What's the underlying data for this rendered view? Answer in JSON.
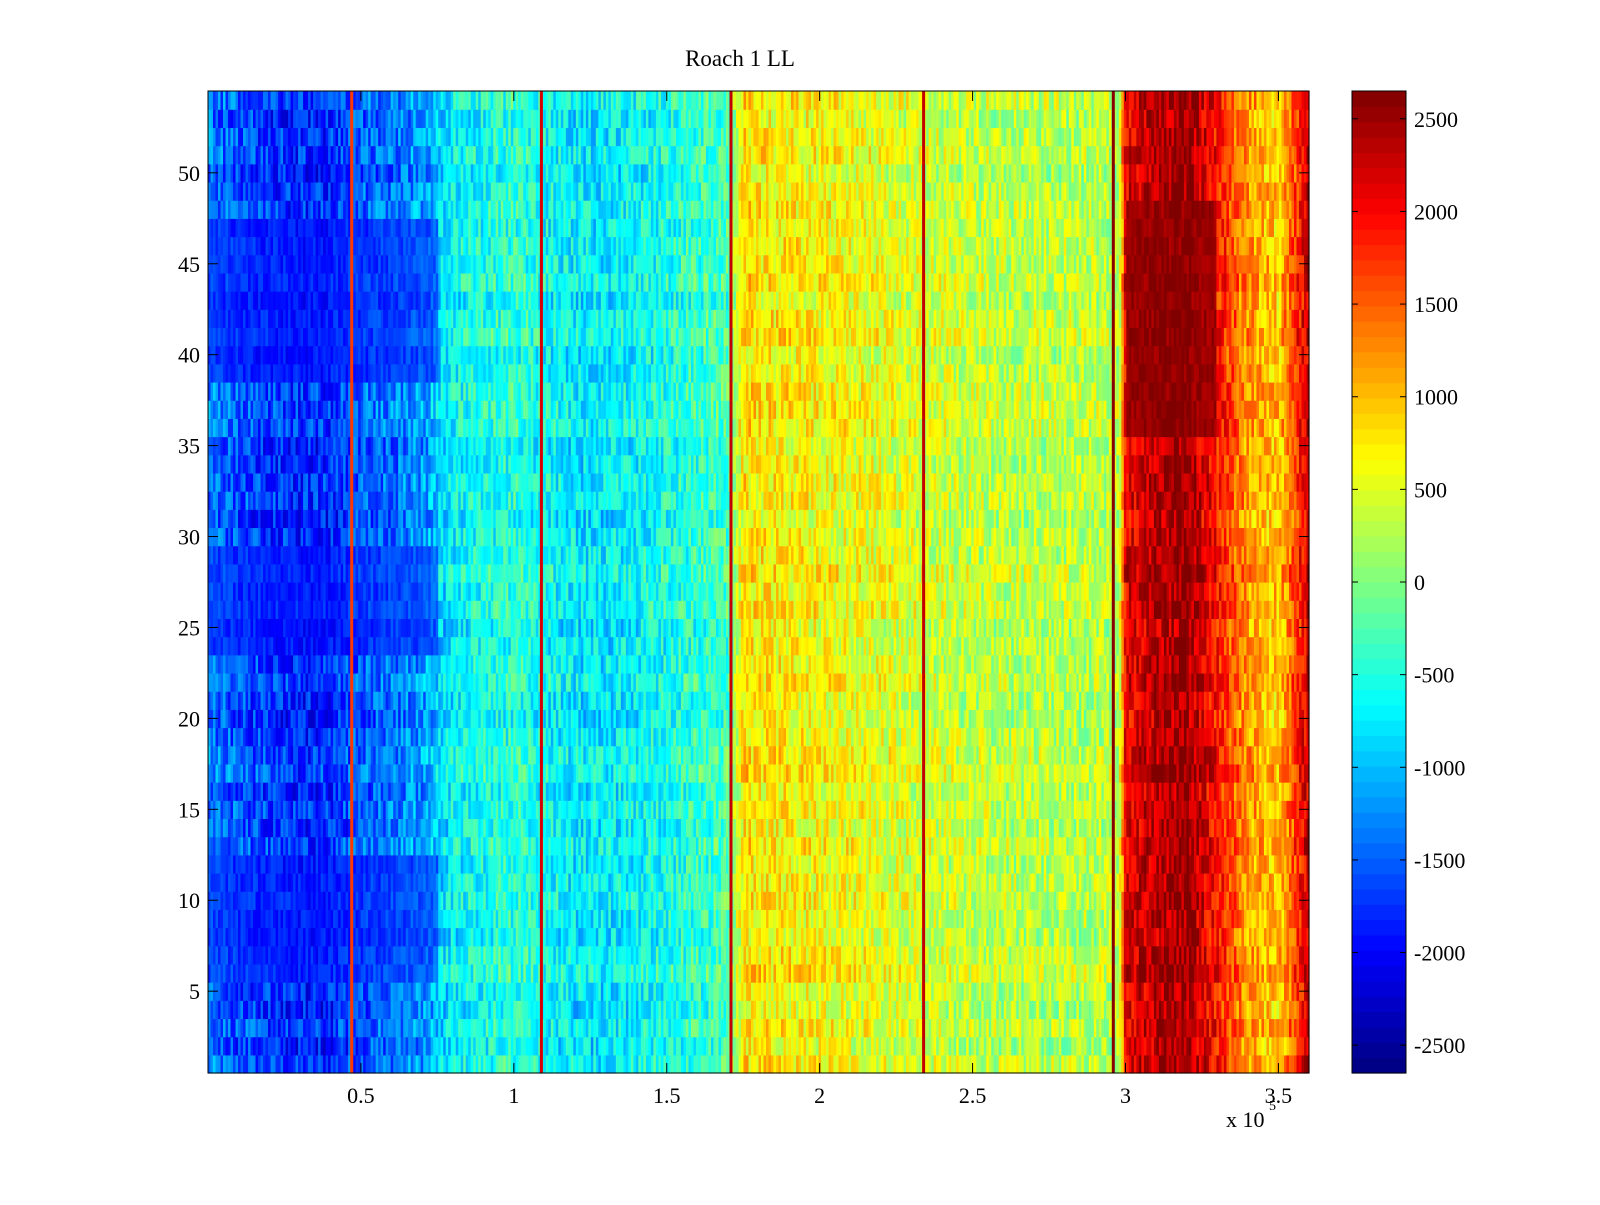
{
  "chart_data": {
    "type": "heatmap",
    "title": "Roach 1 LL",
    "xlabel": "",
    "ylabel": "",
    "x_multiplier_label": "x 10",
    "x_multiplier_exponent": "5",
    "xlim": [
      0,
      3.6
    ],
    "ylim": [
      0.5,
      54.5
    ],
    "x_ticks": [
      0.5,
      1,
      1.5,
      2,
      2.5,
      3,
      3.5
    ],
    "x_tick_labels": [
      "0.5",
      "1",
      "1.5",
      "2",
      "2.5",
      "3",
      "3.5"
    ],
    "y_ticks": [
      5,
      10,
      15,
      20,
      25,
      30,
      35,
      40,
      45,
      50
    ],
    "y_tick_labels": [
      "5",
      "10",
      "15",
      "20",
      "25",
      "30",
      "35",
      "40",
      "45",
      "50"
    ],
    "rows": 54,
    "colorbar": {
      "colormap": "jet",
      "clim": [
        -2650,
        2650
      ],
      "ticks": [
        -2500,
        -2000,
        -1500,
        -1000,
        -500,
        0,
        500,
        1000,
        1500,
        2000,
        2500
      ],
      "tick_labels": [
        "-2500",
        "-2000",
        "-1500",
        "-1000",
        "-500",
        "0",
        "500",
        "1000",
        "1500",
        "2000",
        "2500"
      ]
    },
    "column_profile": {
      "x_units": "x 10^5",
      "x": [
        0.0,
        0.1,
        0.2,
        0.3,
        0.4,
        0.5,
        0.6,
        0.7,
        0.8,
        0.9,
        1.0,
        1.1,
        1.2,
        1.3,
        1.4,
        1.5,
        1.6,
        1.7,
        1.75,
        1.8,
        1.9,
        2.0,
        2.1,
        2.2,
        2.3,
        2.4,
        2.5,
        2.6,
        2.7,
        2.8,
        2.9,
        2.98,
        3.0,
        3.1,
        3.2,
        3.3,
        3.4,
        3.5,
        3.6
      ],
      "mean_value": [
        -1350,
        -1550,
        -1700,
        -1800,
        -1750,
        -1500,
        -1400,
        -1200,
        -700,
        -550,
        -450,
        -600,
        -750,
        -750,
        -650,
        -550,
        -400,
        -300,
        800,
        750,
        700,
        650,
        600,
        550,
        450,
        400,
        350,
        300,
        300,
        300,
        300,
        300,
        2100,
        2400,
        2550,
        1900,
        1200,
        900,
        2300
      ]
    },
    "high_value_band": {
      "x_range": [
        3.0,
        3.3
      ],
      "y_range": [
        36,
        48
      ],
      "value": 2650
    },
    "low_value_bands": [
      {
        "x_range": [
          0.0,
          0.75
        ],
        "y_range": [
          39,
          47
        ],
        "value": -2000
      },
      {
        "x_range": [
          0.0,
          0.75
        ],
        "y_range": [
          24,
          29
        ],
        "value": -1950
      },
      {
        "x_range": [
          0.0,
          0.75
        ],
        "y_range": [
          6,
          12
        ],
        "value": -1950
      }
    ],
    "vertical_lines": [
      {
        "x": 0.47,
        "value": 1700
      },
      {
        "x": 1.09,
        "value": 2200
      },
      {
        "x": 1.71,
        "value": 2300
      },
      {
        "x": 2.34,
        "value": 2300
      },
      {
        "x": 2.96,
        "value": 2600
      }
    ]
  }
}
